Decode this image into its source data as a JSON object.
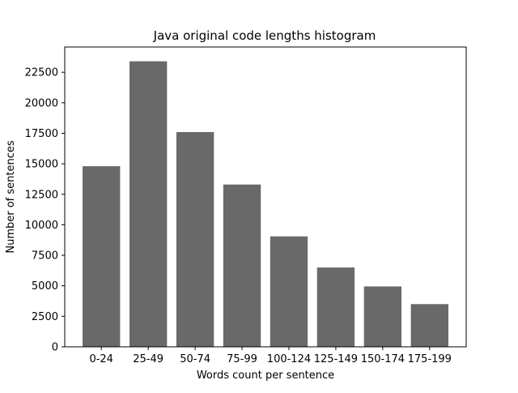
{
  "chart_data": {
    "type": "bar",
    "title": "Java original code lengths histogram",
    "xlabel": "Words count per sentence",
    "ylabel": "Number of sentences",
    "categories": [
      "0-24",
      "25-49",
      "50-74",
      "75-99",
      "100-124",
      "125-149",
      "150-174",
      "175-199"
    ],
    "values": [
      14800,
      23400,
      17600,
      13300,
      9050,
      6500,
      4950,
      3500
    ],
    "ylim": [
      0,
      24570
    ],
    "yticks": [
      0,
      2500,
      5000,
      7500,
      10000,
      12500,
      15000,
      17500,
      20000,
      22500
    ],
    "bar_color": "#696969",
    "grid": false,
    "legend": "none"
  }
}
